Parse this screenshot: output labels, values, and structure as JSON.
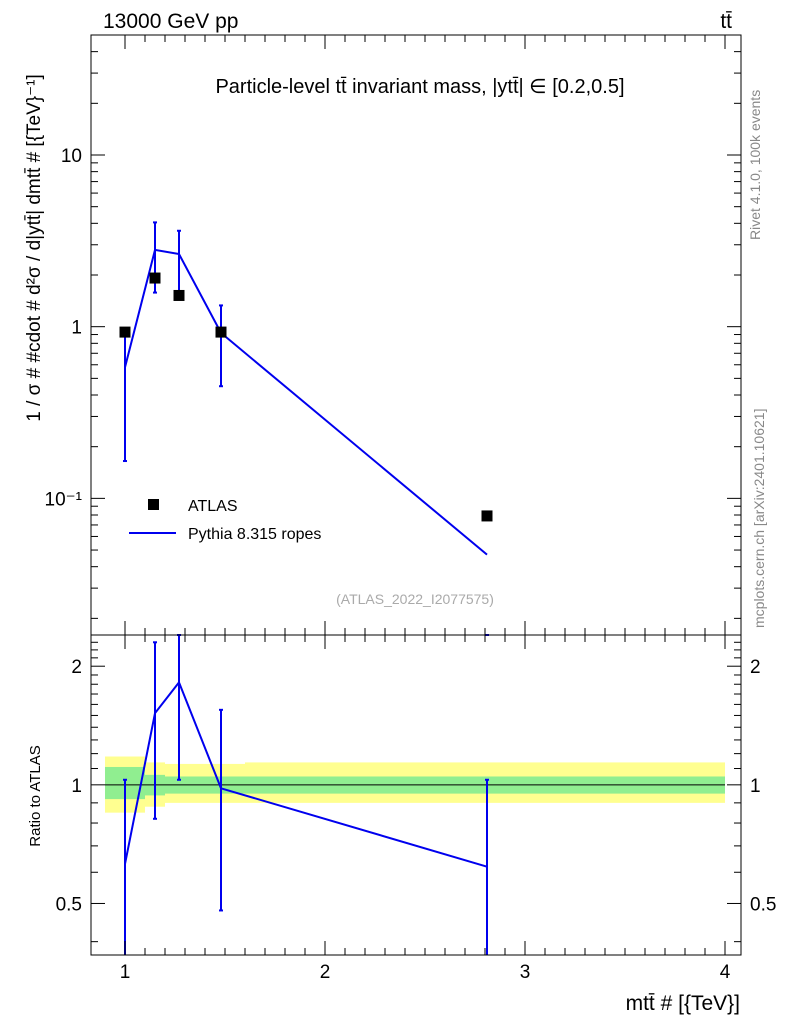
{
  "header": {
    "energy_label": "13000 GeV pp",
    "process_label": "tt̄"
  },
  "side_text": {
    "rivet": "Rivet 4.1.0,  100k events",
    "mcplots": "mcplots.cern.ch [arXiv:2401.10621]"
  },
  "chart_data": {
    "type": "line",
    "title": "Particle-level tt̄ invariant mass, |ytt̄| ∈ [0.2,0.5]",
    "watermark": "(ATLAS_2022_I2077575)",
    "xlabel": "mtt̄ # [{TeV}]",
    "ylabel": "1 / σ # #cdot # d²σ / d|ytt̄| dmtt̄ # [{TeV}⁻¹]",
    "ratio_ylabel": "Ratio to ATLAS",
    "x_scale": "linear",
    "y_scale": "log",
    "xlim": [
      0.83,
      4.08
    ],
    "ylim": [
      0.016,
      50
    ],
    "ratio_ylim": [
      0.37,
      2.4
    ],
    "x_ticks": [
      1,
      2,
      3,
      4
    ],
    "x_tick_labels": [
      "1",
      "2",
      "3",
      "4"
    ],
    "y_ticks": [
      10,
      1,
      0.1
    ],
    "y_tick_labels": [
      "10",
      "1",
      "10⁻¹"
    ],
    "ratio_ticks": [
      2,
      1,
      0.5
    ],
    "ratio_tick_labels": [
      "2",
      "1",
      "0.5"
    ],
    "legend": [
      {
        "label": "ATLAS",
        "style": "marker"
      },
      {
        "label": "Pythia 8.315 ropes",
        "style": "line"
      }
    ],
    "legend_position": "lower-left",
    "colors": {
      "mc": "#0000ee",
      "data": "#000000",
      "band_inner": "#90ee90",
      "band_outer": "#ffff90"
    },
    "data": {
      "name": "ATLAS",
      "x": [
        1.0,
        1.15,
        1.27,
        1.48,
        2.81
      ],
      "y": [
        0.93,
        1.92,
        1.52,
        0.93,
        0.079
      ]
    },
    "mc": {
      "name": "Pythia 8.315 ropes",
      "x": [
        1.0,
        1.15,
        1.27,
        1.48,
        2.81
      ],
      "y": [
        0.58,
        2.8,
        2.65,
        0.92,
        0.047
      ],
      "err_low": [
        0.165,
        1.58,
        1.52,
        0.45,
        0.0
      ],
      "err_high": [
        0.95,
        4.05,
        3.62,
        1.33,
        0.0
      ]
    },
    "ratio": {
      "x": [
        1.0,
        1.15,
        1.27,
        1.48,
        2.81
      ],
      "values": [
        0.63,
        1.52,
        1.82,
        0.98,
        0.62
      ],
      "err_low": [
        0.0,
        0.82,
        1.03,
        0.48,
        0.0
      ],
      "err_high": [
        1.03,
        2.3,
        2.5,
        1.55,
        1.03
      ]
    },
    "bands": {
      "edges": [
        0.9,
        1.1,
        1.2,
        1.35,
        1.6,
        4.0
      ],
      "inner_low": [
        0.92,
        0.94,
        0.95,
        0.95,
        0.95
      ],
      "inner_high": [
        1.11,
        1.06,
        1.05,
        1.05,
        1.05
      ],
      "outer_low": [
        0.85,
        0.88,
        0.9,
        0.9,
        0.9
      ],
      "outer_high": [
        1.18,
        1.14,
        1.13,
        1.13,
        1.14
      ]
    }
  }
}
